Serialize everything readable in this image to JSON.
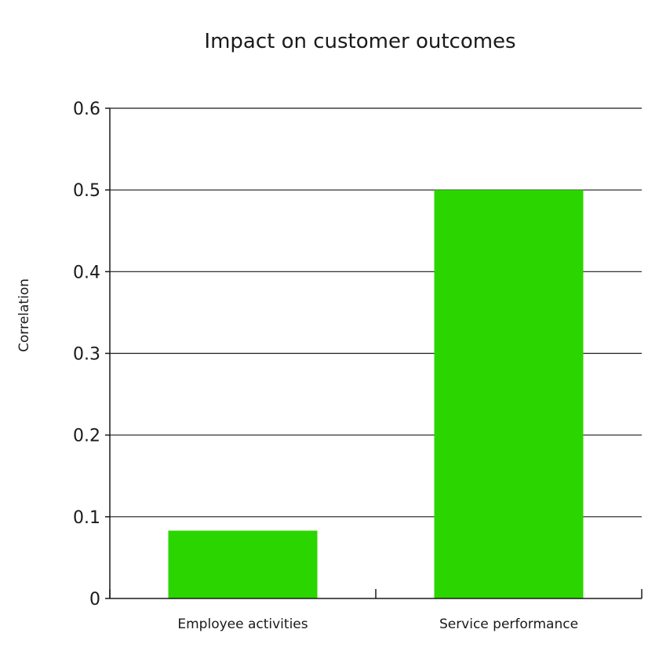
{
  "chart_data": {
    "type": "bar",
    "title": "Impact on customer outcomes",
    "xlabel": "",
    "ylabel": "Correlation",
    "categories": [
      "Employee activities",
      "Service performance"
    ],
    "values": [
      0.083,
      0.5
    ],
    "ylim": [
      0,
      0.6
    ],
    "yticks": [
      0,
      0.1,
      0.2,
      0.3,
      0.4,
      0.5,
      0.6
    ],
    "ytick_labels": [
      "0",
      "0.1",
      "0.2",
      "0.3",
      "0.4",
      "0.5",
      "0.6"
    ],
    "grid": true,
    "legend": "none",
    "bar_color": "#2bd600",
    "grid_color": "#1a1a1a",
    "axis_color": "#1a1a1a"
  }
}
